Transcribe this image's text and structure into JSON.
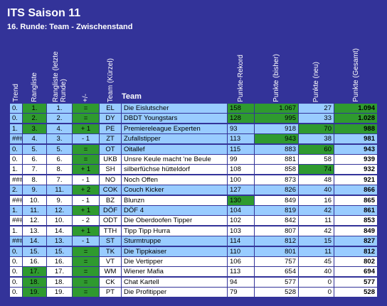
{
  "header": {
    "title": "ITS Saison 11",
    "subtitle": "16. Runde: Team - Zwischenstand"
  },
  "table": {
    "columns": [
      "Trend",
      "Rangliste",
      "Rangliste (letzte Runde)",
      "+/-",
      "Team (Kürzel)",
      "Team",
      "Punkte-Rekord",
      "Punkte (bisher)",
      "Punkte (neu)",
      "Punkte (Gesamt)"
    ],
    "rows": [
      [
        "0.",
        "1.",
        "1.",
        "=",
        "EL",
        "Die Eislutscher",
        "158",
        "1.067",
        "27",
        "1.094"
      ],
      [
        "0.",
        "2.",
        "2.",
        "=",
        "DY",
        "DBDT Youngstars",
        "128",
        "995",
        "33",
        "1.028"
      ],
      [
        "1.",
        "3.",
        "4.",
        "+ 1",
        "PE",
        "Premiereleague Experten",
        "93",
        "918",
        "70",
        "988"
      ],
      [
        "###",
        "4.",
        "3.",
        "- 1",
        "ZT",
        "Zufallstipper",
        "113",
        "943",
        "38",
        "981"
      ],
      [
        "0.",
        "5.",
        "5.",
        "=",
        "OT",
        "Oitallef",
        "115",
        "883",
        "60",
        "943"
      ],
      [
        "0.",
        "6.",
        "6.",
        "=",
        "UKB",
        "Unsre Keule macht 'ne Beule",
        "99",
        "881",
        "58",
        "939"
      ],
      [
        "1.",
        "7.",
        "8.",
        "+ 1",
        "SH",
        "silberfüchse hütteldorf",
        "108",
        "858",
        "74",
        "932"
      ],
      [
        "###",
        "8.",
        "7.",
        "- 1",
        "NO",
        "Noch Offen",
        "100",
        "873",
        "48",
        "921"
      ],
      [
        "2.",
        "9.",
        "11.",
        "+ 2",
        "COK",
        "Couch Kicker",
        "127",
        "826",
        "40",
        "866"
      ],
      [
        "###",
        "10.",
        "9.",
        "- 1",
        "BZ",
        "Blunzn",
        "130",
        "849",
        "16",
        "865"
      ],
      [
        "1.",
        "11.",
        "12.",
        "+ 1",
        "DÖF",
        "DÖF 4",
        "104",
        "819",
        "42",
        "861"
      ],
      [
        "###",
        "12.",
        "10.",
        "- 2",
        "ODT",
        "Die Oberdoofen Tipper",
        "102",
        "842",
        "11",
        "853"
      ],
      [
        "1.",
        "13.",
        "14.",
        "+ 1",
        "TTH",
        "Tipp Tipp Hurra",
        "103",
        "807",
        "42",
        "849"
      ],
      [
        "###",
        "14.",
        "13.",
        "- 1",
        "ST",
        "Sturmtruppe",
        "114",
        "812",
        "15",
        "827"
      ],
      [
        "0.",
        "15.",
        "15.",
        "=",
        "TK",
        "Die Tippkaiser",
        "110",
        "801",
        "11",
        "812"
      ],
      [
        "0.",
        "16.",
        "16.",
        "=",
        "VT",
        "Die Vertipper",
        "106",
        "757",
        "45",
        "802"
      ],
      [
        "0.",
        "17.",
        "17.",
        "=",
        "WM",
        "Wiener Mafia",
        "113",
        "654",
        "40",
        "694"
      ],
      [
        "0.",
        "18.",
        "18.",
        "=",
        "CK",
        "Chat Kartell",
        "94",
        "577",
        "0",
        "577"
      ],
      [
        "0.",
        "19.",
        "19.",
        "=",
        "PT",
        "Die Profitipper",
        "79",
        "528",
        "0",
        "528"
      ]
    ]
  }
}
